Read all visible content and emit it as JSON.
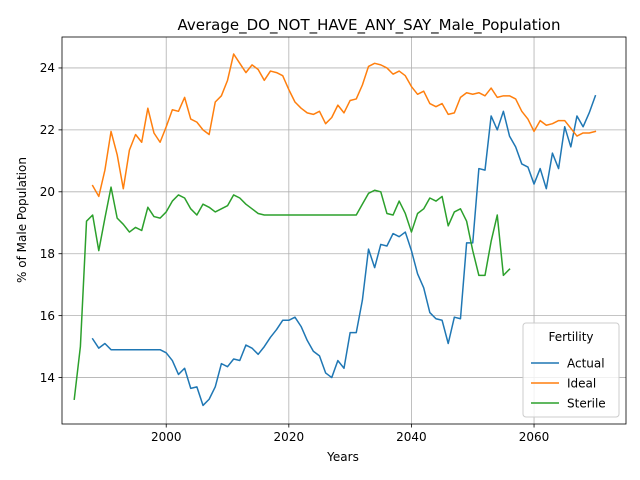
{
  "chart_data": {
    "type": "line",
    "title": "Average_DO_NOT_HAVE_ANY_SAY_Male_Population",
    "xlabel": "Years",
    "ylabel": "% of Male Population",
    "xlim": [
      1983,
      2075
    ],
    "ylim": [
      12.5,
      25.0
    ],
    "xticks": [
      2000,
      2020,
      2040,
      2060
    ],
    "yticks": [
      14,
      16,
      18,
      20,
      22,
      24
    ],
    "grid": true,
    "legend": {
      "title": "Fertility",
      "placement": "bottom-right"
    },
    "series": [
      {
        "name": "Actual",
        "color": "#1f77b4",
        "x": [
          1988,
          1989,
          1990,
          1991,
          1992,
          1993,
          1994,
          1995,
          1996,
          1997,
          1998,
          1999,
          2000,
          2001,
          2002,
          2003,
          2004,
          2005,
          2006,
          2007,
          2008,
          2009,
          2010,
          2011,
          2012,
          2013,
          2014,
          2015,
          2016,
          2017,
          2018,
          2019,
          2020,
          2021,
          2022,
          2023,
          2024,
          2025,
          2026,
          2027,
          2028,
          2029,
          2030,
          2031,
          2032,
          2033,
          2034,
          2035,
          2036,
          2037,
          2038,
          2039,
          2040,
          2041,
          2042,
          2043,
          2044,
          2045,
          2046,
          2047,
          2048,
          2049,
          2050,
          2051,
          2052,
          2053,
          2054,
          2055,
          2056,
          2057,
          2058,
          2059,
          2060,
          2061,
          2062,
          2063,
          2064,
          2065,
          2066,
          2067,
          2068,
          2069,
          2070
        ],
        "values": [
          15.25,
          14.95,
          15.1,
          14.9,
          14.9,
          14.9,
          14.9,
          14.9,
          14.9,
          14.9,
          14.9,
          14.9,
          14.8,
          14.55,
          14.1,
          14.3,
          13.65,
          13.7,
          13.1,
          13.3,
          13.7,
          14.45,
          14.35,
          14.6,
          14.55,
          15.05,
          14.95,
          14.75,
          15.0,
          15.3,
          15.55,
          15.85,
          15.85,
          15.95,
          15.65,
          15.2,
          14.85,
          14.7,
          14.15,
          14.0,
          14.55,
          14.3,
          15.45,
          15.45,
          16.5,
          18.15,
          17.55,
          18.3,
          18.25,
          18.65,
          18.55,
          18.7,
          18.1,
          17.35,
          16.9,
          16.1,
          15.9,
          15.85,
          15.1,
          15.95,
          15.9,
          18.35,
          18.35,
          20.75,
          20.7,
          22.45,
          22.0,
          22.6,
          21.8,
          21.45,
          20.9,
          20.8,
          20.25,
          20.75,
          20.1,
          21.25,
          20.75,
          22.1,
          21.45,
          22.45,
          22.1,
          22.55,
          23.1
        ]
      },
      {
        "name": "Ideal",
        "color": "#ff7f0e",
        "x": [
          1988,
          1989,
          1990,
          1991,
          1992,
          1993,
          1994,
          1995,
          1996,
          1997,
          1998,
          1999,
          2000,
          2001,
          2002,
          2003,
          2004,
          2005,
          2006,
          2007,
          2008,
          2009,
          2010,
          2011,
          2012,
          2013,
          2014,
          2015,
          2016,
          2017,
          2018,
          2019,
          2020,
          2021,
          2022,
          2023,
          2024,
          2025,
          2026,
          2027,
          2028,
          2029,
          2030,
          2031,
          2032,
          2033,
          2034,
          2035,
          2036,
          2037,
          2038,
          2039,
          2040,
          2041,
          2042,
          2043,
          2044,
          2045,
          2046,
          2047,
          2048,
          2049,
          2050,
          2051,
          2052,
          2053,
          2054,
          2055,
          2056,
          2057,
          2058,
          2059,
          2060,
          2061,
          2062,
          2063,
          2064,
          2065,
          2066,
          2067,
          2068,
          2069,
          2070
        ],
        "values": [
          20.2,
          19.85,
          20.7,
          21.95,
          21.2,
          20.1,
          21.35,
          21.85,
          21.6,
          22.7,
          21.9,
          21.6,
          22.1,
          22.65,
          22.6,
          23.05,
          22.35,
          22.25,
          22.0,
          21.85,
          22.9,
          23.1,
          23.6,
          24.45,
          24.15,
          23.85,
          24.1,
          23.95,
          23.6,
          23.9,
          23.85,
          23.75,
          23.3,
          22.9,
          22.7,
          22.55,
          22.5,
          22.6,
          22.2,
          22.4,
          22.8,
          22.55,
          22.95,
          23.0,
          23.45,
          24.05,
          24.15,
          24.1,
          24.0,
          23.8,
          23.9,
          23.75,
          23.4,
          23.15,
          23.25,
          22.85,
          22.75,
          22.85,
          22.5,
          22.55,
          23.05,
          23.2,
          23.15,
          23.2,
          23.1,
          23.35,
          23.05,
          23.1,
          23.1,
          23.0,
          22.6,
          22.35,
          21.95,
          22.3,
          22.15,
          22.2,
          22.3,
          22.3,
          22.05,
          21.8,
          21.9,
          21.9,
          21.95
        ]
      },
      {
        "name": "Sterile",
        "color": "#2ca02c",
        "x": [
          1985,
          1986,
          1987,
          1988,
          1989,
          1990,
          1991,
          1992,
          1993,
          1994,
          1995,
          1996,
          1997,
          1998,
          1999,
          2000,
          2001,
          2002,
          2003,
          2004,
          2005,
          2006,
          2007,
          2008,
          2009,
          2010,
          2011,
          2012,
          2013,
          2014,
          2015,
          2016,
          2017,
          2018,
          2019,
          2020,
          2021,
          2022,
          2023,
          2024,
          2025,
          2026,
          2027,
          2028,
          2029,
          2030,
          2031,
          2032,
          2033,
          2034,
          2035,
          2036,
          2037,
          2038,
          2039,
          2040,
          2041,
          2042,
          2043,
          2044,
          2045,
          2046,
          2047,
          2048,
          2049,
          2050,
          2051,
          2052,
          2053,
          2054,
          2055,
          2056
        ],
        "values": [
          13.3,
          15.0,
          19.05,
          19.25,
          18.1,
          19.15,
          20.15,
          19.15,
          18.95,
          18.7,
          18.85,
          18.75,
          19.5,
          19.2,
          19.15,
          19.35,
          19.7,
          19.9,
          19.8,
          19.45,
          19.25,
          19.6,
          19.5,
          19.35,
          19.45,
          19.55,
          19.9,
          19.8,
          19.6,
          19.45,
          19.3,
          19.25,
          19.25,
          19.25,
          19.25,
          19.25,
          19.25,
          19.25,
          19.25,
          19.25,
          19.25,
          19.25,
          19.25,
          19.25,
          19.25,
          19.25,
          19.25,
          19.6,
          19.95,
          20.05,
          20.0,
          19.3,
          19.25,
          19.7,
          19.3,
          18.7,
          19.3,
          19.45,
          19.8,
          19.7,
          19.85,
          18.9,
          19.35,
          19.45,
          19.05,
          18.1,
          17.3,
          17.3,
          18.4,
          19.25,
          17.3,
          17.5
        ]
      }
    ]
  }
}
